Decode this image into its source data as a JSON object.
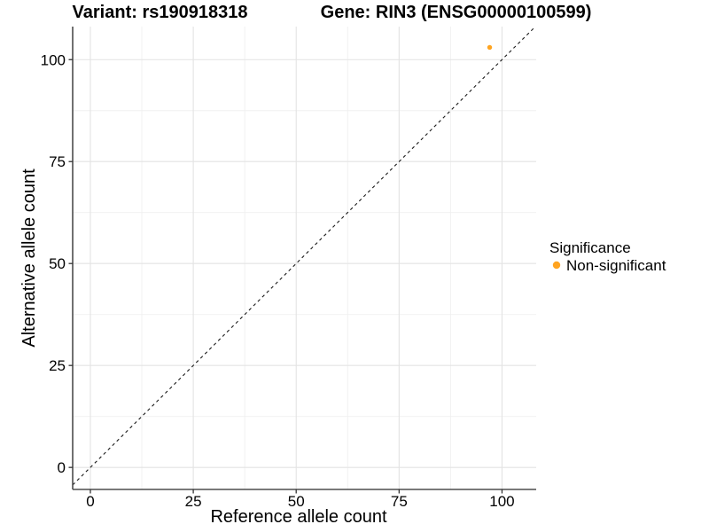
{
  "chart_data": {
    "type": "scatter",
    "titles": [
      {
        "role": "variant",
        "text": "Variant: rs190918318"
      },
      {
        "role": "gene",
        "text": "Gene: RIN3 (ENSG00000100599)"
      }
    ],
    "xlabel": "Reference allele count",
    "ylabel": "Alternative allele count",
    "xlim": [
      -4.3,
      108.3
    ],
    "ylim": [
      -5.4,
      108.1
    ],
    "xticks": [
      0,
      25,
      50,
      75,
      100
    ],
    "yticks": [
      0,
      25,
      50,
      75,
      100
    ],
    "xticks_minor": [
      12.5,
      37.5,
      62.5,
      87.5
    ],
    "yticks_minor": [
      12.5,
      37.5,
      62.5,
      87.5
    ],
    "grid": "major-and-minor",
    "reference_line": {
      "kind": "identity y=x",
      "style": "dashed",
      "color": "#1A1A1A"
    },
    "series": [
      {
        "name": "Non-significant",
        "color": "#FFA420",
        "marker": "circle",
        "points": [
          {
            "x": 97,
            "y": 103
          }
        ]
      }
    ],
    "legend": {
      "position": "right",
      "title": "Significance",
      "items": [
        {
          "label": "Non-significant",
          "color": "#FFA420"
        }
      ]
    }
  }
}
